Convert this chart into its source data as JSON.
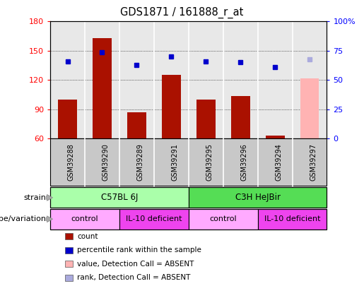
{
  "title": "GDS1871 / 161888_r_at",
  "samples": [
    "GSM39288",
    "GSM39290",
    "GSM39289",
    "GSM39291",
    "GSM39295",
    "GSM39296",
    "GSM39294",
    "GSM39297"
  ],
  "count_values": [
    100,
    163,
    87,
    125,
    100,
    104,
    63,
    122
  ],
  "count_absent": [
    false,
    false,
    false,
    false,
    false,
    false,
    false,
    true
  ],
  "percentile_values": [
    66,
    74,
    63,
    70,
    66,
    65,
    61,
    68
  ],
  "percentile_absent": [
    false,
    false,
    false,
    false,
    false,
    false,
    false,
    true
  ],
  "ylim_left": [
    60,
    180
  ],
  "ylim_right": [
    0,
    100
  ],
  "yticks_left": [
    60,
    90,
    120,
    150,
    180
  ],
  "yticks_right": [
    0,
    25,
    50,
    75,
    100
  ],
  "ytick_labels_right": [
    "0",
    "25",
    "50",
    "75",
    "100%"
  ],
  "bar_color_normal": "#aa1100",
  "bar_color_absent": "#ffb3b3",
  "dot_color_normal": "#0000cc",
  "dot_color_absent": "#aaaadd",
  "plot_bg_color": "#e8e8e8",
  "col_separator_color": "#ffffff",
  "strain_groups": [
    {
      "label": "C57BL 6J",
      "start": 0,
      "end": 4,
      "color": "#aaffaa"
    },
    {
      "label": "C3H HeJBir",
      "start": 4,
      "end": 8,
      "color": "#55dd55"
    }
  ],
  "genotype_groups": [
    {
      "label": "control",
      "start": 0,
      "end": 2,
      "color": "#ffaaff"
    },
    {
      "label": "IL-10 deficient",
      "start": 2,
      "end": 4,
      "color": "#ee44ee"
    },
    {
      "label": "control",
      "start": 4,
      "end": 6,
      "color": "#ffaaff"
    },
    {
      "label": "IL-10 deficient",
      "start": 6,
      "end": 8,
      "color": "#ee44ee"
    }
  ],
  "legend_items": [
    {
      "label": "count",
      "color": "#aa1100"
    },
    {
      "label": "percentile rank within the sample",
      "color": "#0000cc"
    },
    {
      "label": "value, Detection Call = ABSENT",
      "color": "#ffb3b3"
    },
    {
      "label": "rank, Detection Call = ABSENT",
      "color": "#aaaadd"
    }
  ],
  "strain_label": "strain",
  "genotype_label": "genotype/variation",
  "background_color": "#ffffff"
}
